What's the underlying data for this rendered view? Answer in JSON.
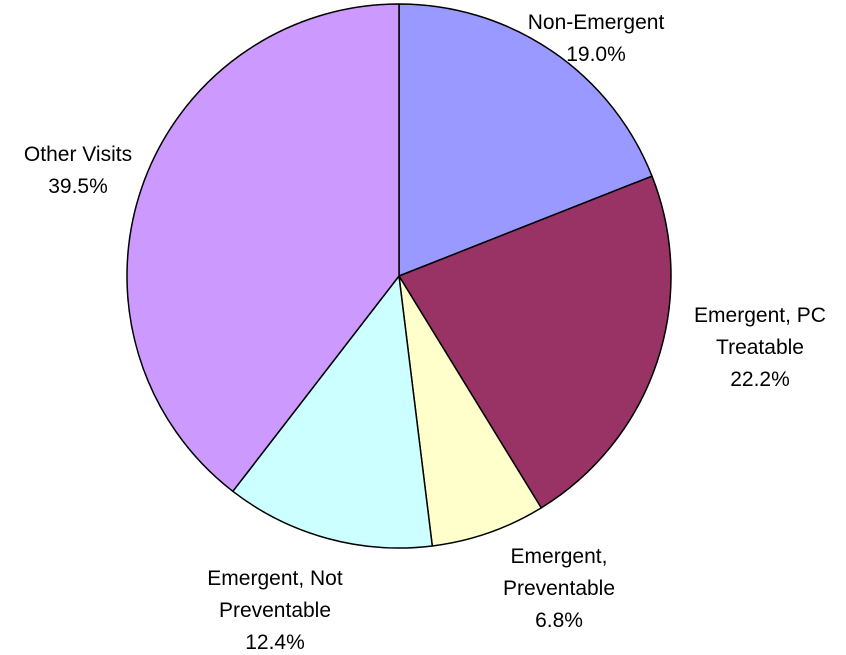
{
  "chart_data": {
    "type": "pie",
    "title": "",
    "start_angle_deg": 0,
    "direction": "clockwise",
    "slices": [
      {
        "label_lines": [
          "Non-Emergent"
        ],
        "value_label": "19.0%",
        "value": 19.0,
        "color": "#9999ff"
      },
      {
        "label_lines": [
          "Emergent, PC",
          "Treatable"
        ],
        "value_label": "22.2%",
        "value": 22.2,
        "color": "#993366"
      },
      {
        "label_lines": [
          "Emergent,",
          "Preventable"
        ],
        "value_label": "6.8%",
        "value": 6.8,
        "color": "#ffffcc"
      },
      {
        "label_lines": [
          "Emergent, Not",
          "Preventable"
        ],
        "value_label": "12.4%",
        "value": 12.4,
        "color": "#ccffff"
      },
      {
        "label_lines": [
          "Other Visits"
        ],
        "value_label": "39.5%",
        "value": 39.5,
        "color": "#cc99ff"
      }
    ]
  }
}
